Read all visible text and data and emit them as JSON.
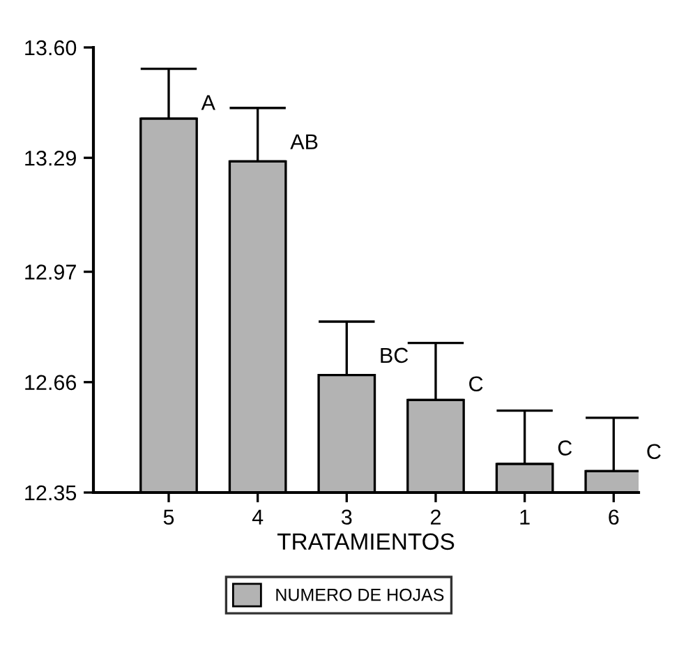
{
  "chart_data": {
    "type": "bar",
    "categories": [
      "5",
      "4",
      "3",
      "2",
      "1",
      "6"
    ],
    "series": [
      {
        "name": "NUMERO DE HOJAS",
        "color": "#b3b3b3",
        "values": [
          13.4,
          13.28,
          12.68,
          12.61,
          12.43,
          12.41
        ],
        "errors": [
          [
            13.4,
            13.54
          ],
          [
            13.28,
            13.43
          ],
          [
            12.68,
            12.83
          ],
          [
            12.61,
            12.77
          ],
          [
            12.43,
            12.58
          ],
          [
            12.41,
            12.56
          ]
        ]
      }
    ],
    "xlabel": "TRATAMIENTOS",
    "ylim": [
      12.35,
      13.6
    ],
    "yticks": [
      12.35,
      12.66,
      12.97,
      13.29,
      {
        "value": 13.6,
        "label": "13.60"
      }
    ],
    "annotations": [
      {
        "text": "A",
        "x": "5",
        "y": 13.44
      },
      {
        "text": "AB",
        "x": "4",
        "y": 13.33
      },
      {
        "text": "BC",
        "x": "3",
        "y": 12.73
      },
      {
        "text": "C",
        "x": "2",
        "y": 12.65
      },
      {
        "text": "C",
        "x": "1",
        "y": 12.47
      },
      {
        "text": "C",
        "x": "6",
        "y": 12.46
      }
    ],
    "legend": "bottom",
    "grid": false
  }
}
